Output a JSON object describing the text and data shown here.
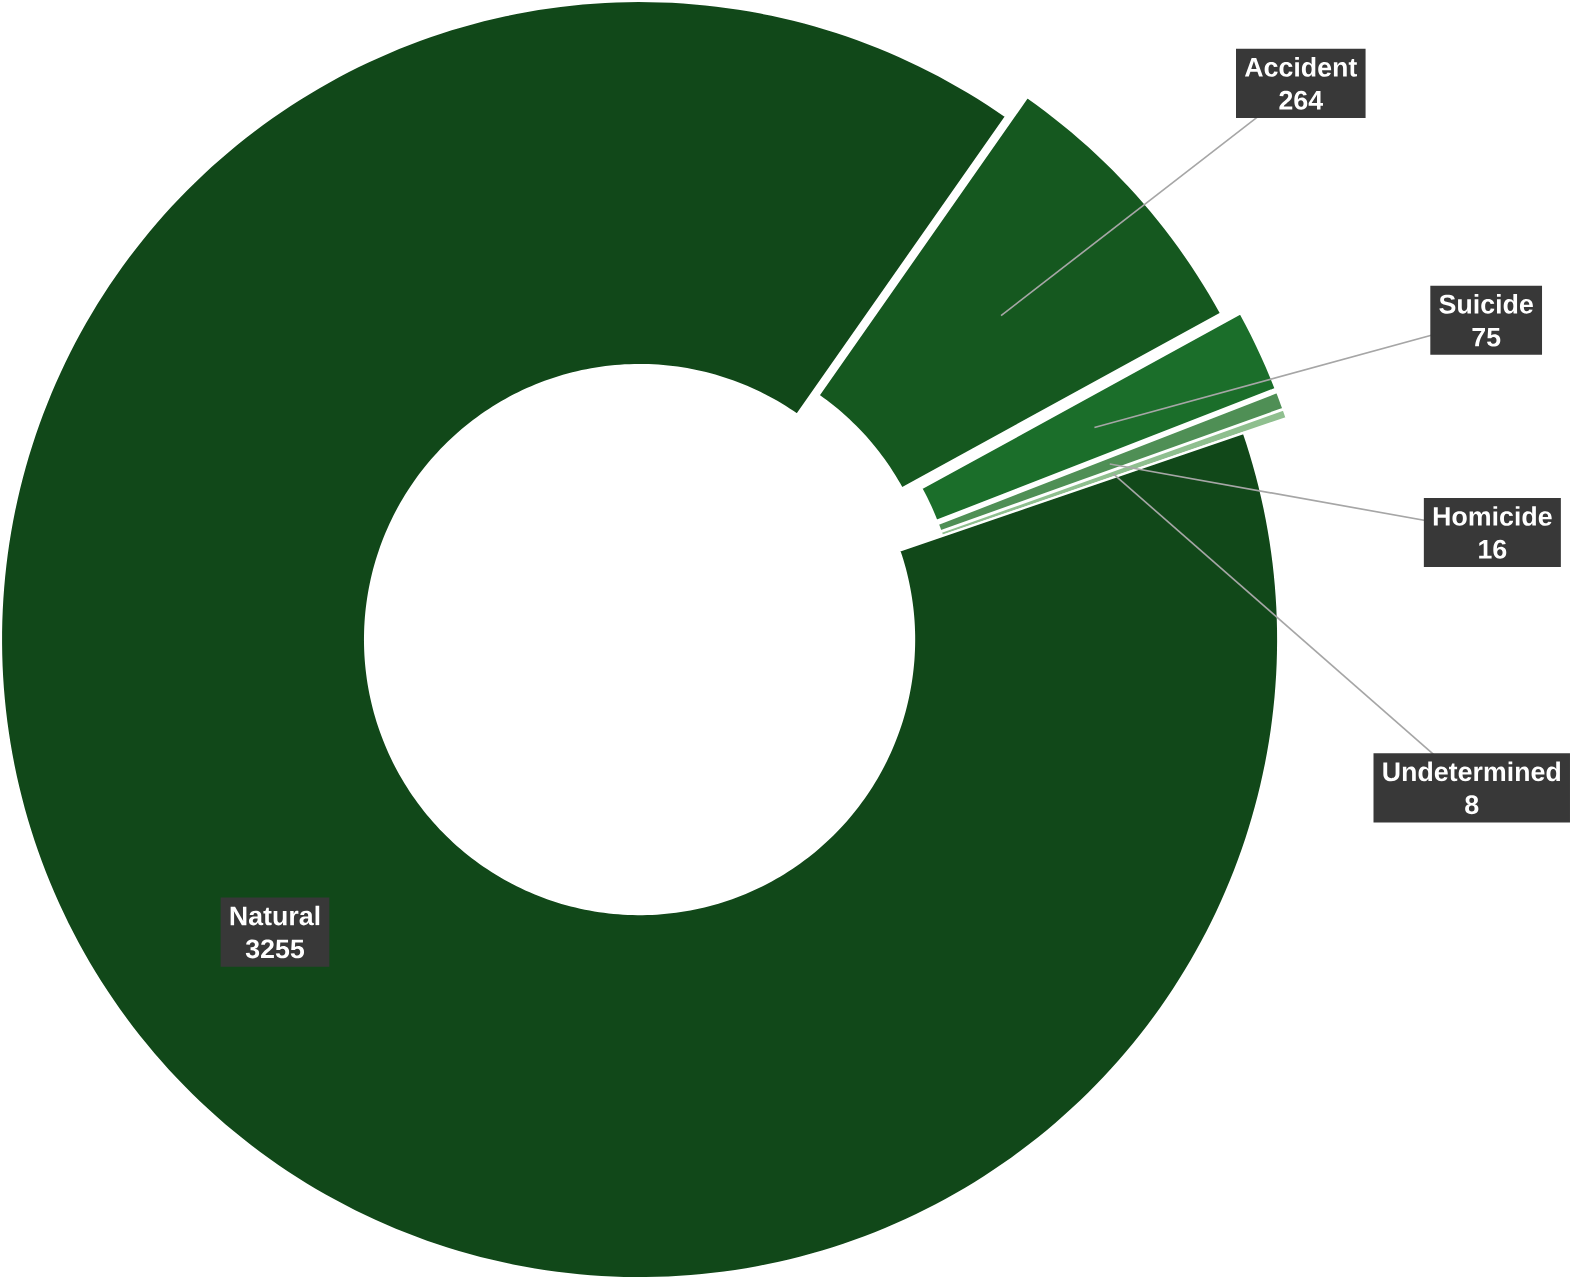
{
  "chart_data": {
    "type": "donut",
    "categories": [
      "Accident",
      "Suicide",
      "Homicide",
      "Undetermined",
      "Natural"
    ],
    "values": [
      264,
      75,
      16,
      8,
      3255
    ],
    "colors": [
      "#15581f",
      "#1b6e2a",
      "#4f8f55",
      "#8fbf8f",
      "#114819"
    ],
    "data_labels": true
  }
}
